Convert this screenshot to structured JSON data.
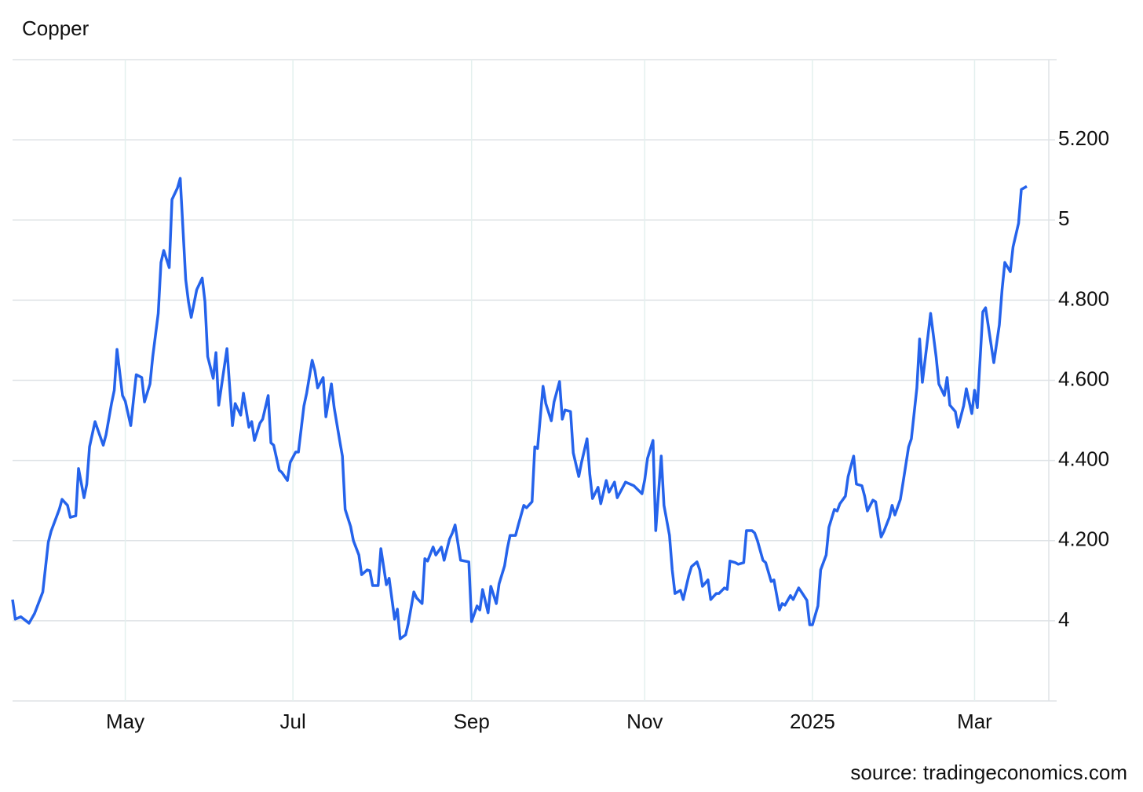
{
  "chart_data": {
    "type": "line",
    "title": "Copper",
    "source": "source: tradingeconomics.com",
    "color": "#2563eb",
    "grid": true,
    "xlim": [
      0,
      377
    ],
    "xticks": [
      {
        "value": 41,
        "label": "May"
      },
      {
        "value": 102,
        "label": "Jul"
      },
      {
        "value": 167,
        "label": "Sep"
      },
      {
        "value": 230,
        "label": "Nov"
      },
      {
        "value": 291,
        "label": "2025"
      },
      {
        "value": 350,
        "label": "Mar"
      }
    ],
    "ylim": [
      3.8,
      5.4
    ],
    "yticks": [
      4,
      {
        "value": 4.2,
        "label": "4.200"
      },
      {
        "value": 4.4,
        "label": "4.400"
      },
      {
        "value": 4.6,
        "label": "4.600"
      },
      {
        "value": 4.8,
        "label": "4.800"
      },
      5,
      {
        "value": 5.2,
        "label": "5.200"
      }
    ],
    "x": [
      0,
      1,
      3,
      6,
      8,
      11,
      13,
      14,
      17,
      18,
      20,
      21,
      23,
      24,
      26,
      27,
      28,
      30,
      31,
      33,
      34,
      36,
      37,
      38,
      40,
      41,
      43,
      44,
      45,
      47,
      48,
      50,
      51,
      53,
      54,
      55,
      57,
      58,
      60,
      61,
      63,
      64,
      65,
      67,
      69,
      70,
      71,
      73,
      74,
      75,
      78,
      80,
      81,
      83,
      84,
      86,
      87,
      88,
      90,
      91,
      93,
      94,
      95,
      97,
      98,
      100,
      101,
      103,
      104,
      106,
      107,
      109,
      110,
      111,
      113,
      114,
      116,
      117,
      119,
      120,
      121,
      123,
      124,
      126,
      127,
      129,
      130,
      131,
      133,
      134,
      136,
      137,
      139,
      140,
      141,
      143,
      144,
      146,
      147,
      149,
      150,
      151,
      153,
      154,
      156,
      157,
      159,
      160,
      161,
      163,
      166,
      167,
      169,
      170,
      171,
      173,
      174,
      176,
      177,
      179,
      180,
      181,
      183,
      184,
      186,
      187,
      189,
      190,
      191,
      193,
      194,
      196,
      197,
      199,
      200,
      201,
      203,
      204,
      206,
      207,
      209,
      210,
      211,
      213,
      214,
      216,
      217,
      219,
      220,
      223,
      226,
      229,
      230,
      231,
      233,
      234,
      236,
      237,
      239,
      240,
      241,
      243,
      244,
      246,
      247,
      249,
      250,
      251,
      253,
      254,
      256,
      257,
      259,
      260,
      261,
      263,
      264,
      266,
      267,
      269,
      270,
      271,
      273,
      274,
      276,
      277,
      279,
      280,
      281,
      283,
      284,
      286,
      287,
      289,
      290,
      291,
      293,
      294,
      296,
      297,
      299,
      300,
      301,
      303,
      304,
      306,
      307,
      309,
      310,
      311,
      313,
      314,
      316,
      317,
      319,
      320,
      321,
      323,
      324,
      326,
      327,
      329,
      330,
      331,
      333,
      334,
      336,
      337,
      339,
      340,
      341,
      343,
      344,
      346,
      347,
      349,
      350,
      351,
      353,
      354,
      356,
      357,
      359,
      360,
      361,
      363,
      364,
      366,
      367,
      369
    ],
    "values": [
      4.053,
      4.004,
      4.01,
      3.994,
      4.018,
      4.072,
      4.196,
      4.223,
      4.278,
      4.303,
      4.288,
      4.258,
      4.262,
      4.38,
      4.307,
      4.341,
      4.434,
      4.497,
      4.477,
      4.438,
      4.464,
      4.542,
      4.575,
      4.677,
      4.562,
      4.548,
      4.487,
      4.552,
      4.614,
      4.607,
      4.546,
      4.591,
      4.659,
      4.767,
      4.894,
      4.924,
      4.881,
      5.051,
      5.08,
      5.104,
      4.851,
      4.796,
      4.757,
      4.826,
      4.855,
      4.796,
      4.659,
      4.605,
      4.669,
      4.538,
      4.679,
      4.487,
      4.542,
      4.513,
      4.568,
      4.483,
      4.497,
      4.45,
      4.493,
      4.503,
      4.562,
      4.444,
      4.438,
      4.376,
      4.37,
      4.35,
      4.395,
      4.421,
      4.421,
      4.536,
      4.568,
      4.65,
      4.624,
      4.581,
      4.607,
      4.509,
      4.591,
      4.532,
      4.45,
      4.411,
      4.278,
      4.235,
      4.2,
      4.164,
      4.115,
      4.127,
      4.125,
      4.088,
      4.088,
      4.18,
      4.09,
      4.106,
      4.004,
      4.029,
      3.955,
      3.965,
      3.994,
      4.072,
      4.057,
      4.043,
      4.155,
      4.149,
      4.184,
      4.164,
      4.184,
      4.151,
      4.204,
      4.219,
      4.239,
      4.151,
      4.147,
      3.998,
      4.037,
      4.027,
      4.078,
      4.02,
      4.086,
      4.043,
      4.092,
      4.137,
      4.18,
      4.213,
      4.213,
      4.239,
      4.288,
      4.282,
      4.297,
      4.434,
      4.43,
      4.585,
      4.542,
      4.499,
      4.546,
      4.597,
      4.503,
      4.526,
      4.522,
      4.419,
      4.36,
      4.395,
      4.454,
      4.366,
      4.305,
      4.333,
      4.292,
      4.35,
      4.321,
      4.346,
      4.307,
      4.346,
      4.337,
      4.317,
      4.352,
      4.405,
      4.45,
      4.225,
      4.411,
      4.288,
      4.213,
      4.127,
      4.068,
      4.076,
      4.053,
      4.112,
      4.135,
      4.147,
      4.127,
      4.086,
      4.102,
      4.053,
      4.068,
      4.068,
      4.082,
      4.078,
      4.149,
      4.145,
      4.141,
      4.145,
      4.225,
      4.225,
      4.219,
      4.2,
      4.151,
      4.145,
      4.098,
      4.102,
      4.027,
      4.043,
      4.039,
      4.063,
      4.053,
      4.082,
      4.072,
      4.051,
      3.99,
      3.99,
      4.037,
      4.127,
      4.164,
      4.233,
      4.278,
      4.274,
      4.292,
      4.311,
      4.36,
      4.411,
      4.341,
      4.337,
      4.311,
      4.274,
      4.301,
      4.297,
      4.209,
      4.223,
      4.258,
      4.288,
      4.264,
      4.303,
      4.346,
      4.434,
      4.454,
      4.581,
      4.703,
      4.595,
      4.708,
      4.767,
      4.659,
      4.591,
      4.562,
      4.607,
      4.538,
      4.522,
      4.483,
      4.536,
      4.579,
      4.517,
      4.575,
      4.532,
      4.771,
      4.781,
      4.689,
      4.644,
      4.738,
      4.826,
      4.894,
      4.871,
      4.933,
      4.992,
      5.076,
      5.084
    ]
  }
}
